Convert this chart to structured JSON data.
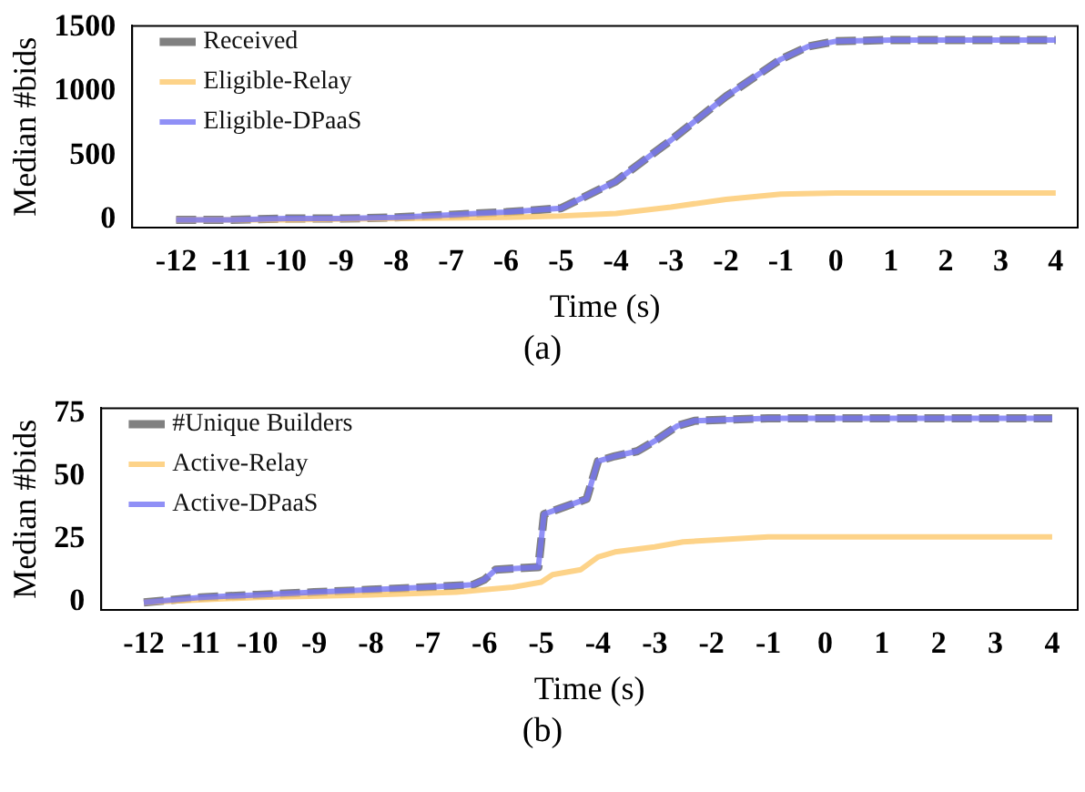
{
  "chart_data": [
    {
      "type": "line",
      "xlabel": "Time (s)",
      "ylabel": "Median #bids",
      "annotations": [
        "(a)"
      ],
      "legend": "top left",
      "line_style": "solid",
      "marker": "none",
      "grid": false,
      "xlim": [
        -12.8,
        4.4
      ],
      "ylim": [
        -60,
        1510
      ],
      "xticks": [
        -12,
        -11,
        -10,
        -9,
        -8,
        -7,
        -6,
        -5,
        -4,
        -3,
        -2,
        -1,
        0,
        1,
        2,
        3,
        4
      ],
      "yticks": [
        0,
        500,
        1000,
        1500
      ],
      "series": [
        {
          "name": "Received",
          "color": "#808080",
          "line_style": "dashed",
          "x": [
            -12,
            -11,
            -10,
            -9,
            -8,
            -7,
            -6,
            -5,
            -4,
            -3,
            -2,
            -1,
            -0.5,
            0,
            1,
            2,
            3,
            4
          ],
          "values": [
            0,
            0,
            10,
            10,
            20,
            40,
            60,
            90,
            300,
            620,
            960,
            1250,
            1350,
            1390,
            1400,
            1400,
            1400,
            1400
          ]
        },
        {
          "name": "Eligible-Relay",
          "color": "#fdc86c",
          "x": [
            -12,
            -10,
            -8,
            -6,
            -5,
            -4,
            -3,
            -2,
            -1,
            0,
            1,
            2,
            3,
            4
          ],
          "values": [
            0,
            0,
            10,
            20,
            30,
            50,
            100,
            160,
            200,
            210,
            210,
            210,
            210,
            210
          ]
        },
        {
          "name": "Eligible-DPaaS",
          "color": "#7474f4",
          "x": [
            -12,
            -11,
            -10,
            -9,
            -8,
            -7,
            -6,
            -5,
            -4,
            -3,
            -2,
            -1,
            -0.5,
            0,
            1,
            2,
            3,
            4
          ],
          "values": [
            0,
            0,
            10,
            10,
            20,
            40,
            60,
            90,
            300,
            620,
            960,
            1250,
            1350,
            1390,
            1400,
            1400,
            1400,
            1400
          ]
        }
      ]
    },
    {
      "type": "line",
      "xlabel": "Time (s)",
      "ylabel": "Median #bids",
      "annotations": [
        "(b)"
      ],
      "legend": "top left",
      "line_style": "solid",
      "marker": "none",
      "grid": false,
      "xlim": [
        -12.75,
        4.45
      ],
      "ylim": [
        -3,
        77
      ],
      "xticks": [
        -12,
        -11,
        -10,
        -9,
        -8,
        -7,
        -6,
        -5,
        -4,
        -3,
        -2,
        -1,
        0,
        1,
        2,
        3,
        4
      ],
      "yticks": [
        0,
        25,
        50,
        75
      ],
      "series": [
        {
          "name": "#Unique Builders",
          "color": "#808080",
          "line_style": "dashed",
          "x": [
            -12,
            -11.5,
            -11,
            -10,
            -9,
            -8,
            -7,
            -6.2,
            -6,
            -5.8,
            -5.05,
            -4.95,
            -4.7,
            -4.2,
            -4,
            -3.7,
            -3.3,
            -3,
            -2.6,
            -2.3,
            -1,
            0,
            1,
            2,
            3,
            4
          ],
          "values": [
            0,
            1,
            2,
            3,
            4,
            5,
            6,
            7,
            9,
            13,
            14,
            35,
            37,
            41,
            56,
            58,
            60,
            64,
            70,
            72,
            73,
            73,
            73,
            73,
            73,
            73
          ]
        },
        {
          "name": "Active-Relay",
          "color": "#fdc86c",
          "x": [
            -12,
            -10,
            -8,
            -6.5,
            -6,
            -5.5,
            -5,
            -4.8,
            -4.3,
            -4,
            -3.7,
            -3,
            -2.5,
            -1,
            0,
            1,
            2,
            3,
            4
          ],
          "values": [
            0,
            2,
            3,
            4,
            5,
            6,
            8,
            11,
            13,
            18,
            20,
            22,
            24,
            26,
            26,
            26,
            26,
            26,
            26
          ]
        },
        {
          "name": "Active-DPaaS",
          "color": "#7474f4",
          "x": [
            -12,
            -11.5,
            -11,
            -10,
            -9,
            -8,
            -7,
            -6.2,
            -6,
            -5.8,
            -5.05,
            -4.95,
            -4.7,
            -4.2,
            -4,
            -3.7,
            -3.3,
            -3,
            -2.6,
            -2.3,
            -1,
            0,
            1,
            2,
            3,
            4
          ],
          "values": [
            0,
            1,
            2,
            3,
            4,
            5,
            6,
            7,
            9,
            13,
            14,
            35,
            37,
            41,
            56,
            58,
            60,
            64,
            70,
            72,
            73,
            73,
            73,
            73,
            73,
            73
          ]
        }
      ]
    }
  ]
}
